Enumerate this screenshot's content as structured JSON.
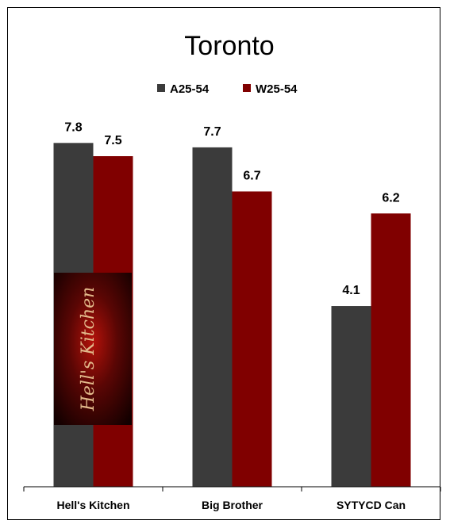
{
  "chart_data": {
    "type": "bar",
    "title": "Toronto",
    "categories": [
      "Hell's Kitchen",
      "Big Brother",
      "SYTYCD Can"
    ],
    "series": [
      {
        "name": "A25-54",
        "values": [
          7.8,
          7.7,
          4.1
        ],
        "color": "#3b3b3b"
      },
      {
        "name": "W25-54",
        "values": [
          7.5,
          6.7,
          6.2
        ],
        "color": "#800000"
      }
    ],
    "ylim": [
      0,
      10
    ],
    "grid": false,
    "legend_position": "top-center",
    "data_labels": true
  },
  "images": [
    {
      "name": "hells-kitchen-logo",
      "text": "Hell's Kitchen"
    }
  ]
}
